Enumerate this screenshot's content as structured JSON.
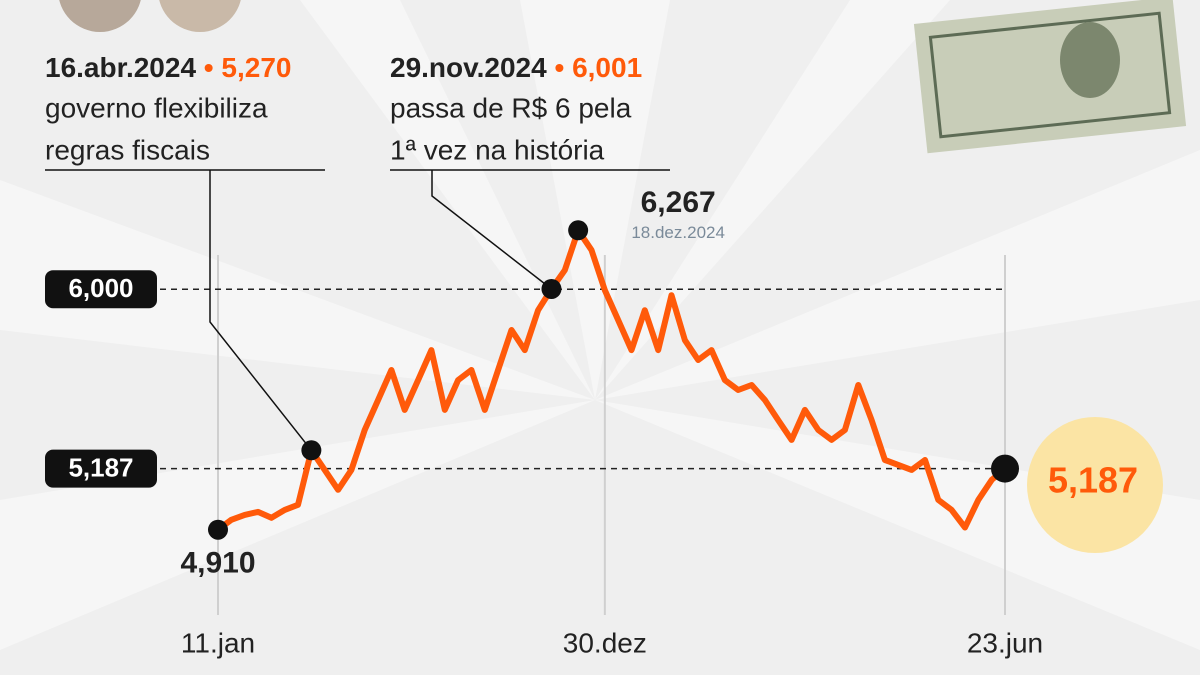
{
  "chart_data": {
    "type": "line",
    "color": "#ff5a0a",
    "ylim": [
      4.8,
      6.3
    ],
    "categories": [
      "11.jan",
      null,
      null,
      null,
      null,
      null,
      null,
      null,
      null,
      null,
      null,
      null,
      null,
      null,
      null,
      null,
      null,
      null,
      null,
      null,
      null,
      null,
      null,
      null,
      null,
      null,
      null,
      null,
      null,
      "30.dez",
      null,
      null,
      null,
      null,
      null,
      null,
      null,
      null,
      null,
      null,
      null,
      null,
      null,
      null,
      null,
      null,
      null,
      null,
      null,
      null,
      null,
      null,
      null,
      null,
      null,
      null,
      null,
      null,
      null,
      "23.jun"
    ],
    "values": [
      4.91,
      4.955,
      4.977,
      4.991,
      4.964,
      5.0,
      5.023,
      5.27,
      5.181,
      5.091,
      5.181,
      5.362,
      5.498,
      5.634,
      5.453,
      5.588,
      5.724,
      5.453,
      5.588,
      5.634,
      5.453,
      5.634,
      5.815,
      5.724,
      5.905,
      6.001,
      6.086,
      6.267,
      6.177,
      5.996,
      5.86,
      5.724,
      5.905,
      5.724,
      5.973,
      5.769,
      5.679,
      5.724,
      5.588,
      5.543,
      5.566,
      5.498,
      5.407,
      5.317,
      5.453,
      5.362,
      5.317,
      5.362,
      5.566,
      5.407,
      5.226,
      5.204,
      5.181,
      5.226,
      5.045,
      5.0,
      4.92,
      5.045,
      5.136,
      5.187
    ],
    "value_labels": [
      "4,910",
      null,
      null,
      null,
      null,
      null,
      null,
      "5,270",
      null,
      null,
      null,
      null,
      null,
      null,
      null,
      null,
      null,
      null,
      null,
      null,
      null,
      null,
      null,
      null,
      null,
      "6,001",
      null,
      "6,267",
      null,
      null,
      null,
      null,
      null,
      null,
      null,
      null,
      null,
      null,
      null,
      null,
      null,
      null,
      null,
      null,
      null,
      null,
      null,
      null,
      null,
      null,
      null,
      null,
      null,
      null,
      null,
      null,
      null,
      null,
      null,
      "5,187"
    ],
    "dates": [
      null,
      null,
      null,
      null,
      null,
      null,
      null,
      "16.abr.2024",
      null,
      null,
      null,
      null,
      null,
      null,
      null,
      null,
      null,
      null,
      null,
      null,
      null,
      null,
      null,
      null,
      null,
      "29.nov.2024",
      null,
      "18.dez.2024",
      null,
      null,
      null,
      null,
      null,
      null,
      null,
      null,
      null,
      null,
      null,
      null,
      null,
      null,
      null,
      null,
      null,
      null,
      null,
      null,
      null,
      null,
      null,
      null,
      null,
      null,
      null,
      null,
      null,
      null,
      null,
      null
    ],
    "notes": [
      null,
      null,
      null,
      null,
      null,
      null,
      null,
      [
        "governo flexibiliza",
        "regras fiscais"
      ],
      null,
      null,
      null,
      null,
      null,
      null,
      null,
      null,
      null,
      null,
      null,
      null,
      null,
      null,
      null,
      null,
      null,
      [
        "passa de R$ 6 pela",
        "1ª vez na história"
      ],
      null,
      null,
      null,
      null,
      null,
      null,
      null,
      null,
      null,
      null,
      null,
      null,
      null,
      null,
      null,
      null,
      null,
      null,
      null,
      null,
      null,
      null,
      null,
      null,
      null,
      null,
      null,
      null,
      null,
      null,
      null,
      null
    ],
    "reference_lines": [
      {
        "value": 6,
        "label": "6,000"
      },
      {
        "value": 5.187,
        "label": "5,187"
      }
    ]
  }
}
